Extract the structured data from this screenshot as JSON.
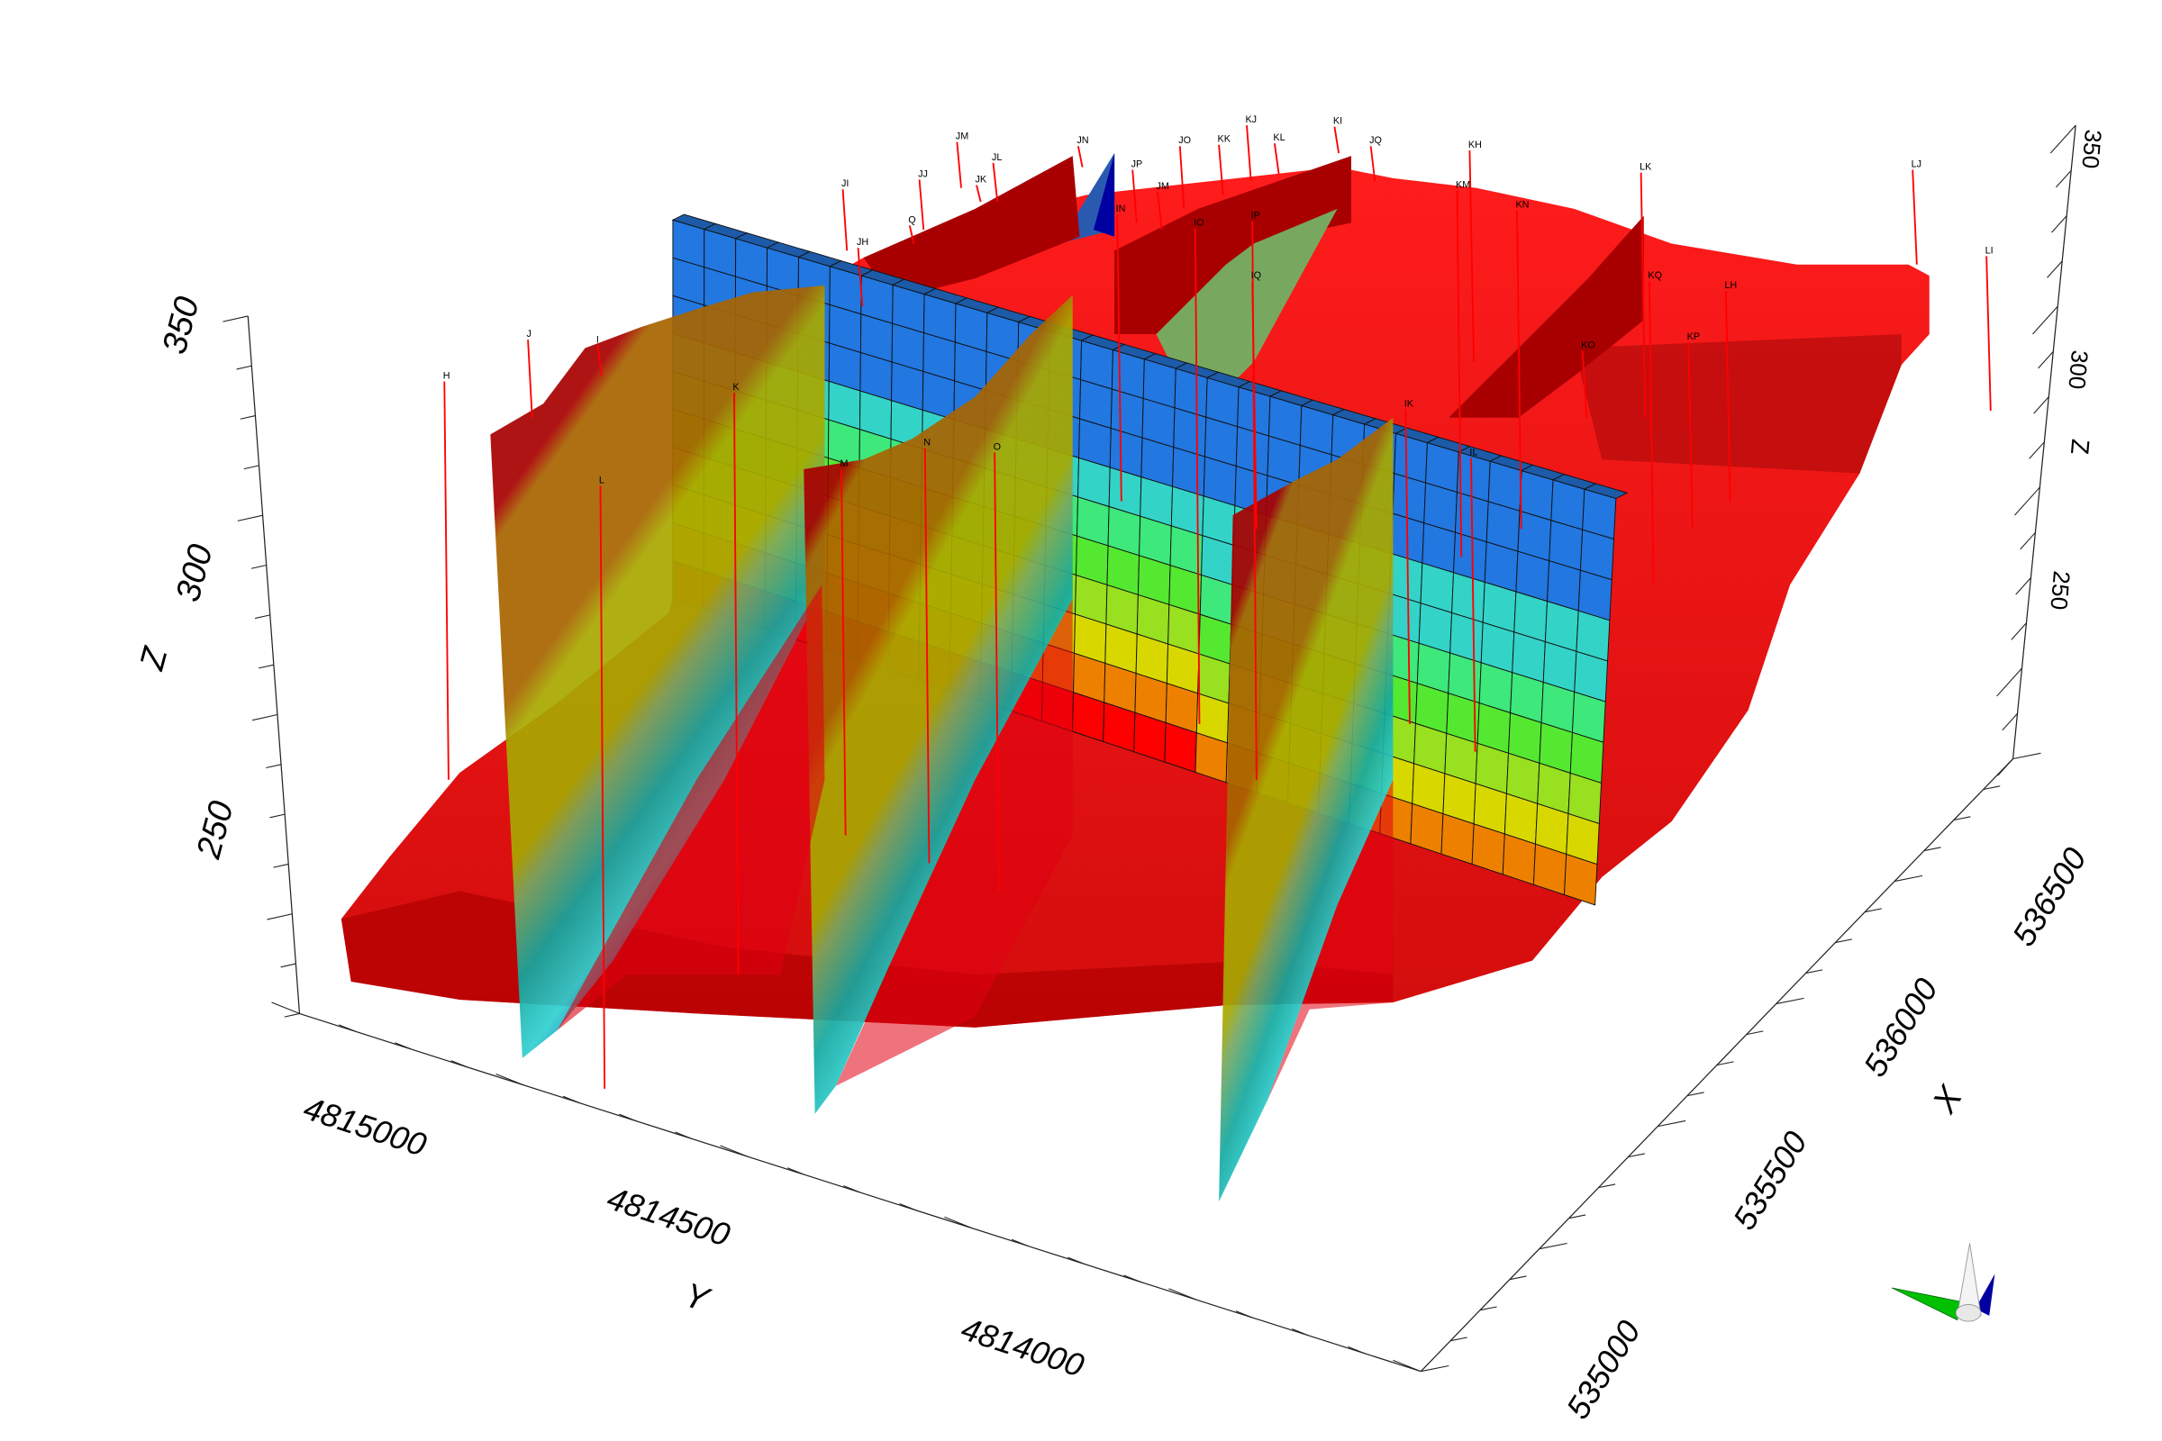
{
  "chart_data": {
    "type": "3d-scene",
    "title": "",
    "axes": {
      "x": {
        "label": "X",
        "ticks": [
          "535000",
          "535500",
          "536000",
          "536500"
        ],
        "range": [
          534900,
          536700
        ]
      },
      "y": {
        "label": "Y",
        "ticks": [
          "4815000",
          "4814500",
          "4814000"
        ],
        "range": [
          4813800,
          4815200
        ]
      },
      "z": {
        "label": "Z",
        "ticks": [
          "350",
          "300",
          "250"
        ],
        "range": [
          220,
          360
        ]
      },
      "z_right": {
        "label": "Z",
        "ticks": [
          "350",
          "300",
          "250"
        ]
      }
    },
    "boreholes": [
      "H",
      "J",
      "I",
      "K",
      "L",
      "JI",
      "JJ",
      "JM",
      "JL",
      "JK",
      "JN",
      "Q",
      "JH",
      "JP",
      "JM",
      "IN",
      "JO",
      "KK",
      "KJ",
      "KL",
      "KI",
      "JQ",
      "IO",
      "IP",
      "IQ",
      "KH",
      "KM",
      "KN",
      "LK",
      "LJ",
      "LI",
      "KQ",
      "LH",
      "KP",
      "KO",
      "M",
      "N",
      "O",
      "IK",
      "IL"
    ],
    "layer_colors": [
      "#a80000",
      "#a86400",
      "#a8a800",
      "#78a860",
      "#14a8a0",
      "#30d0d0",
      "#2a5ab0",
      "#0000a0"
    ],
    "voxel_colors": [
      "#2277e0",
      "#33d3c8",
      "#3ee87a",
      "#55e830",
      "#98e020",
      "#d8d800",
      "#ee8000",
      "#ff0000"
    ],
    "surface_color": "#ff0000",
    "grid": false
  },
  "orientation_axes": {
    "colors": [
      "#00c000",
      "#ffffff",
      "#0000a0"
    ]
  }
}
